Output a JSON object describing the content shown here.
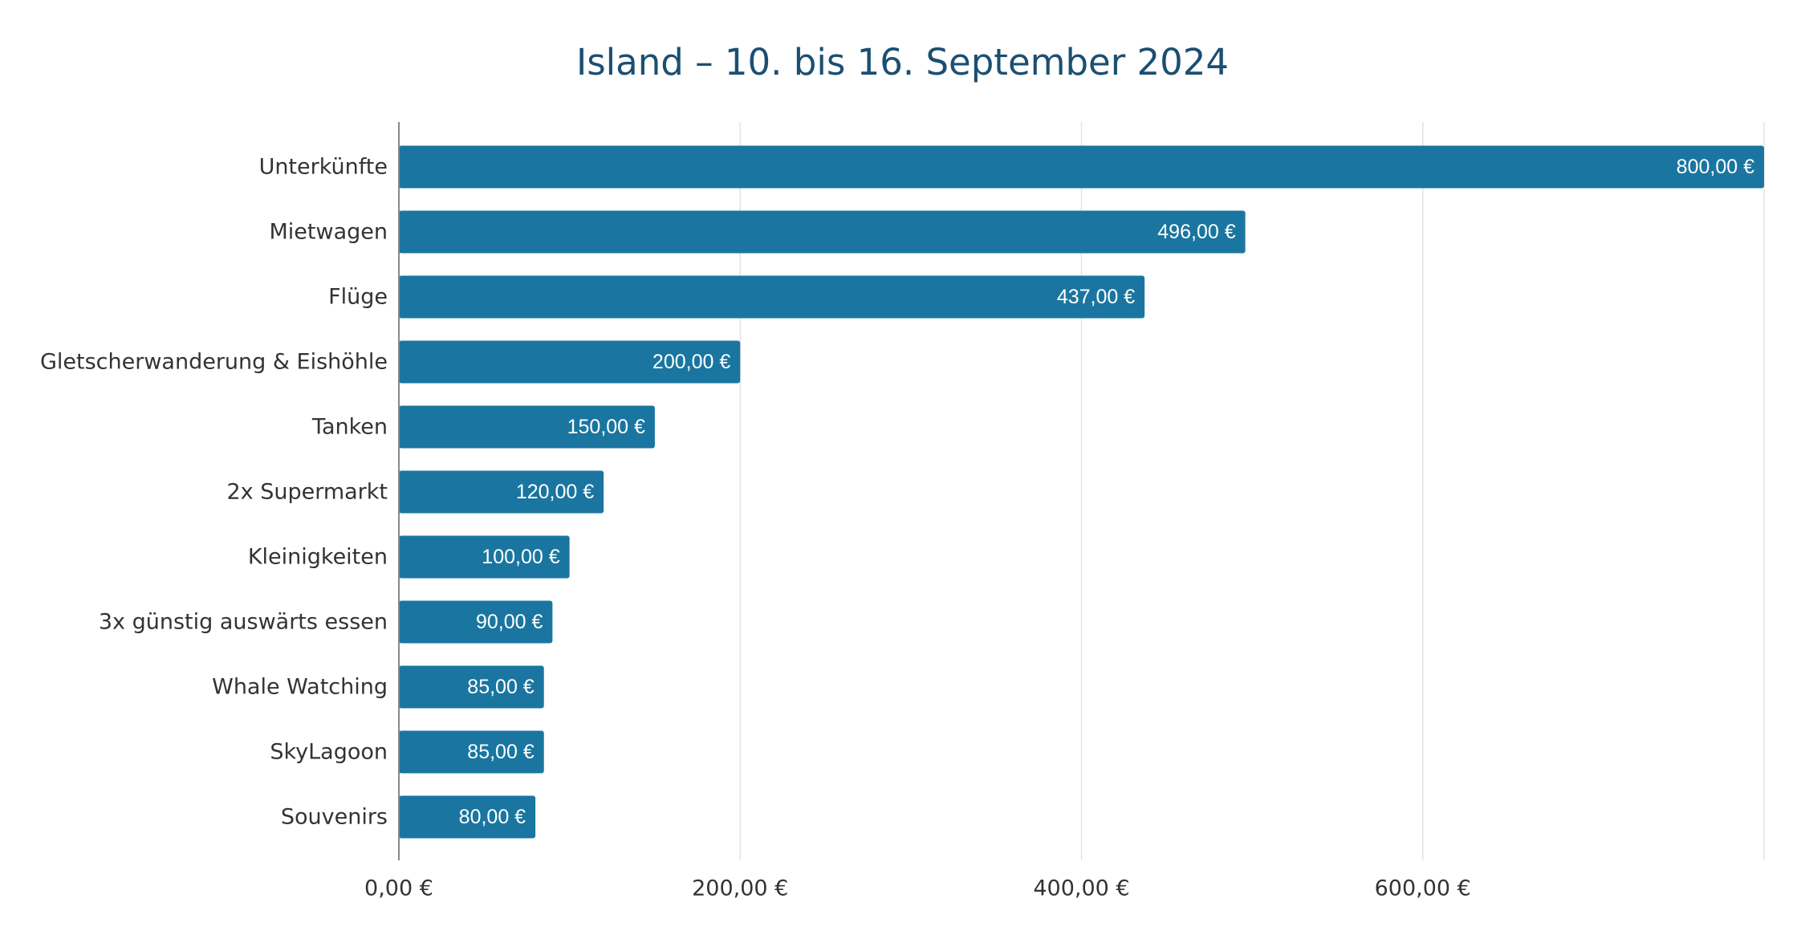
{
  "chart_data": {
    "type": "bar",
    "orientation": "horizontal",
    "title": "Island – 10. bis 16. September 2024",
    "xlabel": "",
    "ylabel": "",
    "categories": [
      "Unterkünfte",
      "Mietwagen",
      "Flüge",
      "Gletscherwanderung & Eishöhle",
      "Tanken",
      "2x Supermarkt",
      "Kleinigkeiten",
      "3x günstig auswärts essen",
      "Whale Watching",
      "SkyLagoon",
      "Souvenirs"
    ],
    "values": [
      800,
      496,
      437,
      200,
      150,
      120,
      100,
      90,
      85,
      85,
      80
    ],
    "value_labels": [
      "800,00 €",
      "496,00 €",
      "437,00 €",
      "200,00 €",
      "150,00 €",
      "120,00 €",
      "100,00 €",
      "90,00 €",
      "85,00 €",
      "85,00 €",
      "80,00 €"
    ],
    "xlim": [
      0,
      800
    ],
    "x_ticks": [
      0,
      200,
      400,
      600
    ],
    "x_tick_labels": [
      "0,00 €",
      "200,00 €",
      "400,00 €",
      "600,00 €"
    ],
    "grid": true,
    "legend": "none",
    "colors": {
      "bar": "#1a76a0",
      "title": "#1b4f72",
      "grid": "#e3e3e3",
      "axis": "#888888",
      "text": "#333333"
    }
  }
}
